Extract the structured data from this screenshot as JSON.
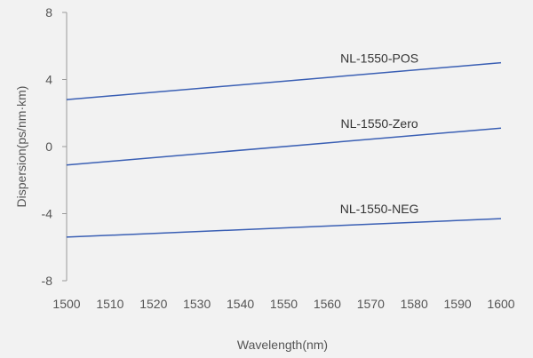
{
  "chart_data": {
    "type": "line",
    "title": "",
    "xlabel": "Wavelength(nm)",
    "ylabel": "Dispersion(ps/nm·km)",
    "xlim": [
      1500,
      1600
    ],
    "ylim": [
      -8,
      8
    ],
    "xticks": [
      1500,
      1510,
      1520,
      1530,
      1540,
      1550,
      1560,
      1570,
      1580,
      1590,
      1600
    ],
    "yticks": [
      8,
      4,
      0,
      -4,
      -8
    ],
    "grid": false,
    "legend": "none",
    "line_color": "#3a5fb4",
    "series": [
      {
        "name": "NL-1550-POS",
        "x": [
          1500,
          1600
        ],
        "y": [
          2.8,
          5.0
        ]
      },
      {
        "name": "NL-1550-Zero",
        "x": [
          1500,
          1600
        ],
        "y": [
          -1.1,
          1.1
        ]
      },
      {
        "name": "NL-1550-NEG",
        "x": [
          1500,
          1600
        ],
        "y": [
          -5.4,
          -4.3
        ]
      }
    ]
  }
}
